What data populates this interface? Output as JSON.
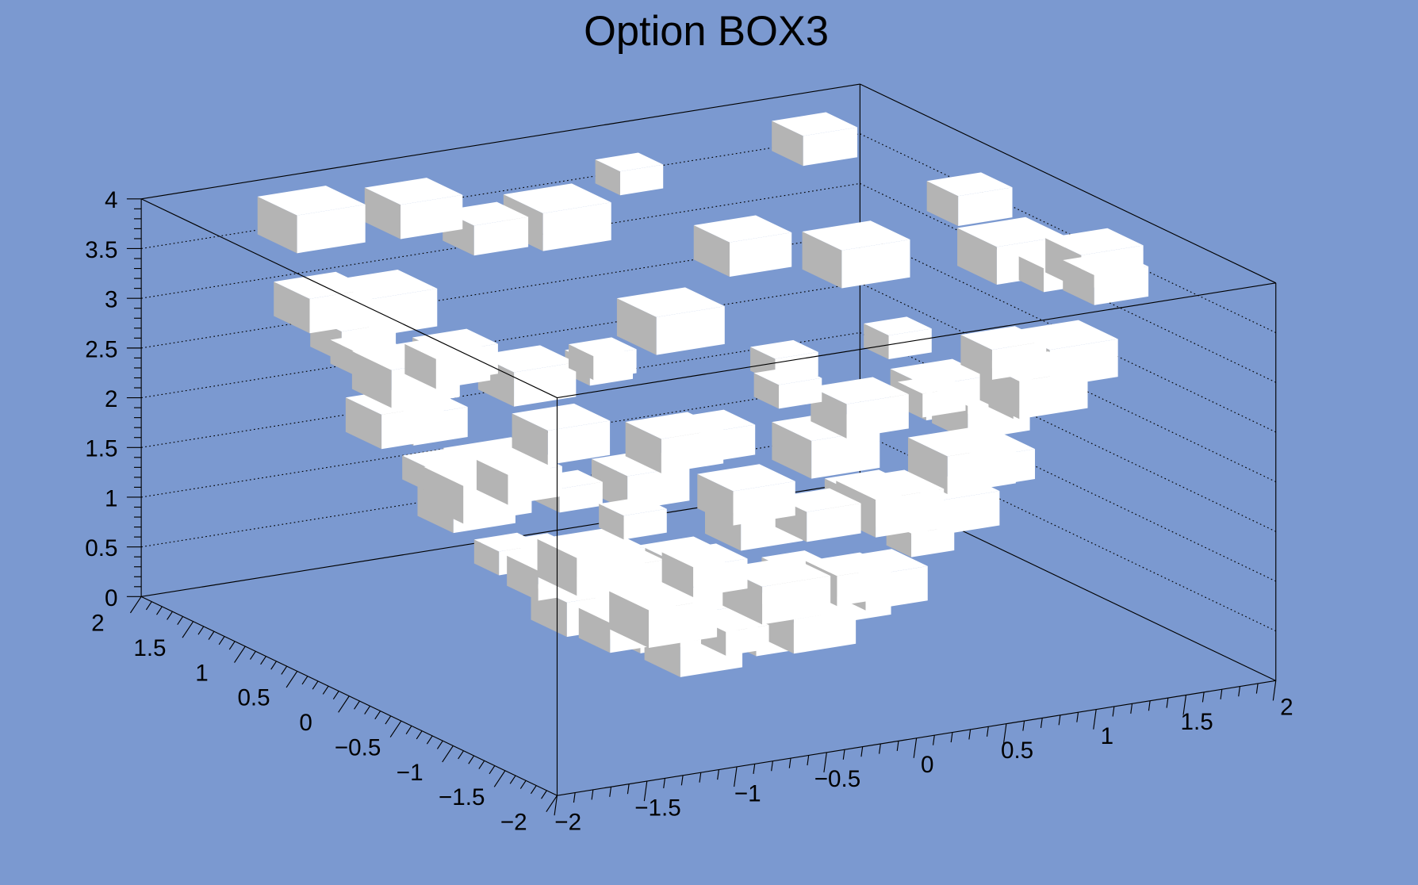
{
  "chart_data": {
    "type": "box3d",
    "title": "Option BOX3",
    "background_color": "#7b99d0",
    "box_colors": {
      "top": "#ffffff",
      "front": "#ffffff",
      "side": "#b4b4b4"
    },
    "xlim": [
      -2,
      2
    ],
    "ylim": [
      -2,
      2
    ],
    "zlim": [
      0,
      4
    ],
    "grid": "dotted on back walls (z)",
    "x_ticks": [
      "−2",
      "−1.5",
      "−1",
      "−0.5",
      "0",
      "0.5",
      "1",
      "1.5",
      "2"
    ],
    "y_ticks": [
      "−2",
      "−1.5",
      "−1",
      "−0.5",
      "0",
      "0.5",
      "1",
      "1.5",
      "2"
    ],
    "z_ticks": [
      "0",
      "0.5",
      "1",
      "1.5",
      "2",
      "2.5",
      "3",
      "3.5",
      "4"
    ],
    "cell_columns": [
      "x",
      "y",
      "z",
      "content"
    ],
    "cells": [
      [
        -1.8,
        -0.6,
        3.6,
        2
      ],
      [
        -1.8,
        -0.2,
        3.28,
        4
      ],
      [
        -1.8,
        0.2,
        3.28,
        1
      ],
      [
        -1.8,
        0.6,
        3.6,
        3
      ],
      [
        1.8,
        -0.6,
        3.6,
        3
      ],
      [
        1.8,
        -0.2,
        3.28,
        1
      ],
      [
        1.8,
        0.2,
        3.28,
        4
      ],
      [
        1.8,
        0.6,
        3.6,
        2
      ],
      [
        -1.4,
        -1.4,
        3.92,
        1
      ],
      [
        -1.4,
        -1,
        2.96,
        3
      ],
      [
        -1.4,
        -0.6,
        2.32,
        2
      ],
      [
        -1.4,
        -0.2,
        2,
        4
      ],
      [
        -1.4,
        0.2,
        2,
        1
      ],
      [
        -1.4,
        0.6,
        2.32,
        3
      ],
      [
        -1.4,
        1,
        2.96,
        2
      ],
      [
        -1.4,
        1.4,
        3.92,
        4
      ],
      [
        1.4,
        -1.4,
        3.92,
        2
      ],
      [
        1.4,
        -1,
        2.96,
        4
      ],
      [
        1.4,
        -0.6,
        2.32,
        1
      ],
      [
        1.4,
        -0.2,
        2,
        3
      ],
      [
        1.4,
        0.2,
        2,
        3
      ],
      [
        1.4,
        0.6,
        2.32,
        1
      ],
      [
        1.4,
        1,
        2.96,
        4
      ],
      [
        1.4,
        1.4,
        3.92,
        2
      ],
      [
        -1,
        -1.4,
        2.96,
        3
      ],
      [
        -1,
        -1,
        2,
        1
      ],
      [
        -1,
        -0.6,
        1.36,
        4
      ],
      [
        -1,
        -0.2,
        1.04,
        2
      ],
      [
        -1,
        0.2,
        1.04,
        1
      ],
      [
        -1,
        0.6,
        1.36,
        3
      ],
      [
        -1,
        1,
        2,
        2
      ],
      [
        -1,
        1.4,
        2.96,
        4
      ],
      [
        1,
        -1.4,
        2.96,
        4
      ],
      [
        1,
        -1,
        2,
        2
      ],
      [
        1,
        -0.6,
        1.36,
        3
      ],
      [
        1,
        -0.2,
        1.04,
        1
      ],
      [
        1,
        0.2,
        1.04,
        2
      ],
      [
        1,
        0.6,
        1.36,
        4
      ],
      [
        1,
        1,
        2,
        1
      ],
      [
        1,
        1.4,
        2.96,
        3
      ],
      [
        -0.6,
        -1.8,
        3.6,
        1
      ],
      [
        -0.6,
        -1.4,
        2.32,
        3
      ],
      [
        -0.6,
        -1,
        1.36,
        2
      ],
      [
        -0.6,
        -0.6,
        0.72,
        4
      ],
      [
        -0.6,
        -0.2,
        0.4,
        2
      ],
      [
        -0.6,
        0.2,
        0.4,
        3
      ],
      [
        -0.6,
        0.6,
        0.72,
        1
      ],
      [
        -0.6,
        1,
        1.36,
        4
      ],
      [
        -0.6,
        1.4,
        2.32,
        2
      ],
      [
        -0.6,
        1.8,
        3.6,
        3
      ],
      [
        0.6,
        -1.8,
        3.6,
        2
      ],
      [
        0.6,
        -1.4,
        2.32,
        4
      ],
      [
        0.6,
        -1,
        1.36,
        1
      ],
      [
        0.6,
        -0.6,
        0.72,
        3
      ],
      [
        0.6,
        -0.2,
        0.4,
        4
      ],
      [
        0.6,
        0.2,
        0.4,
        1
      ],
      [
        0.6,
        0.6,
        0.72,
        3
      ],
      [
        0.6,
        1,
        1.36,
        2
      ],
      [
        0.6,
        1.4,
        2.32,
        4
      ],
      [
        0.6,
        1.8,
        3.6,
        1
      ],
      [
        -0.2,
        -1.8,
        3.28,
        3
      ],
      [
        -0.2,
        -1.4,
        2,
        2
      ],
      [
        -0.2,
        -1,
        1.04,
        4
      ],
      [
        -0.2,
        -0.6,
        0.4,
        1
      ],
      [
        -0.2,
        -0.2,
        0.08,
        3
      ],
      [
        -0.2,
        0.2,
        0.08,
        2
      ],
      [
        -0.2,
        0.6,
        0.4,
        4
      ],
      [
        -0.2,
        1,
        1.04,
        1
      ],
      [
        -0.2,
        1.4,
        2,
        3
      ],
      [
        -0.2,
        1.8,
        3.28,
        2
      ],
      [
        0.2,
        -1.8,
        3.28,
        1
      ],
      [
        0.2,
        -1.4,
        2,
        4
      ],
      [
        0.2,
        -1,
        1.04,
        2
      ],
      [
        0.2,
        -0.6,
        0.4,
        3
      ],
      [
        0.2,
        -0.2,
        0.08,
        1
      ],
      [
        0.2,
        0.2,
        0.08,
        4
      ],
      [
        0.2,
        0.6,
        0.4,
        2
      ],
      [
        0.2,
        1,
        1.04,
        3
      ],
      [
        0.2,
        1.4,
        2,
        1
      ],
      [
        0.2,
        1.8,
        3.28,
        4
      ]
    ]
  }
}
